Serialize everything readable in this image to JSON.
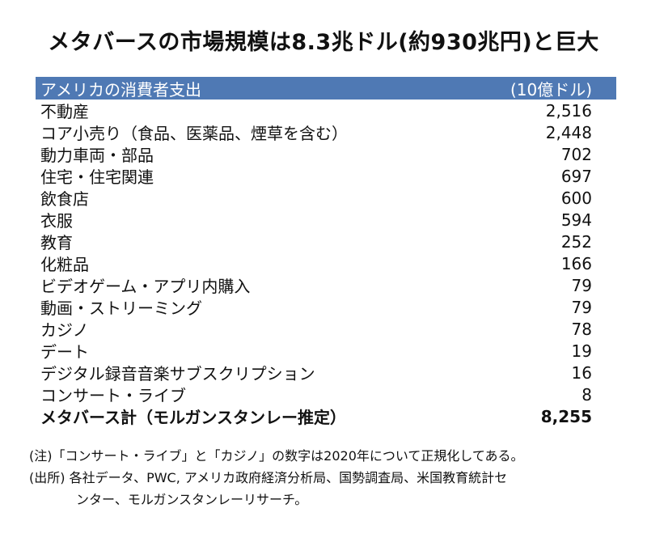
{
  "title": "メタバースの市場規模は8.3兆ドル(約930兆円)と巨大",
  "colors": {
    "header_bg": "#4f79b4",
    "header_text": "#ffffff",
    "text": "#111111"
  },
  "table": {
    "header": {
      "category": "アメリカの消費者支出",
      "unit": "(10億ドル)"
    },
    "rows": [
      {
        "label": "不動産",
        "value": "2,516"
      },
      {
        "label": "コア小売り（食品、医薬品、煙草を含む）",
        "value": "2,448"
      },
      {
        "label": "動力車両・部品",
        "value": "702"
      },
      {
        "label": "住宅・住宅関連",
        "value": "697"
      },
      {
        "label": "飲食店",
        "value": "600"
      },
      {
        "label": "衣服",
        "value": "594"
      },
      {
        "label": "教育",
        "value": "252"
      },
      {
        "label": "化粧品",
        "value": "166"
      },
      {
        "label": "ビデオゲーム・アプリ内購入",
        "value": "79"
      },
      {
        "label": "動画・ストリーミング",
        "value": "79"
      },
      {
        "label": "カジノ",
        "value": "78"
      },
      {
        "label": "デート",
        "value": "19"
      },
      {
        "label": "デジタル録音音楽サブスクリプション",
        "value": "16"
      },
      {
        "label": "コンサート・ライブ",
        "value": "8"
      }
    ],
    "total": {
      "label": "メタバース計（モルガンスタンレー推定）",
      "value": "8,255"
    }
  },
  "notes": {
    "note": "(注)「コンサート・ライブ」と「カジノ」の数字は2020年について正規化してある。",
    "source_line1": "(出所) 各社データ、PWC, アメリカ政府経済分析局、国勢調査局、米国教育統計セ",
    "source_line2": "ンター、モルガンスタンレーリサーチ。"
  }
}
